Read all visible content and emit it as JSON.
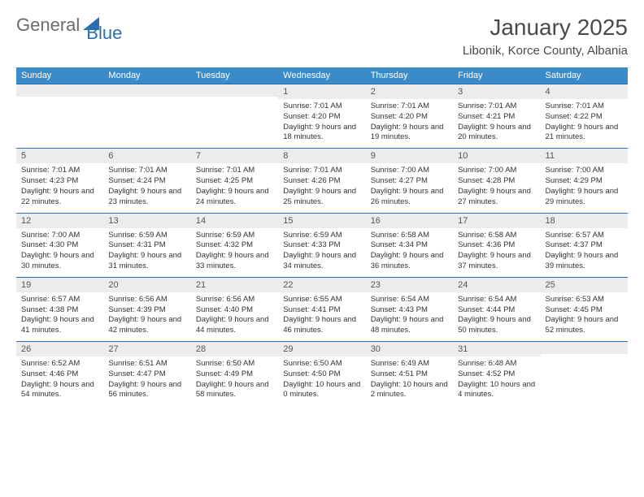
{
  "logo": {
    "general": "General",
    "blue": "Blue"
  },
  "header": {
    "month": "January 2025",
    "location": "Libonik, Korce County, Albania"
  },
  "colors": {
    "headerBg": "#3b8bc9",
    "dayNumBg": "#ececec",
    "border": "#2a6db0",
    "logoBlue": "#2a6db0"
  },
  "weekdays": [
    "Sunday",
    "Monday",
    "Tuesday",
    "Wednesday",
    "Thursday",
    "Friday",
    "Saturday"
  ],
  "weeks": [
    [
      null,
      null,
      null,
      {
        "num": "1",
        "sunrise": "7:01 AM",
        "sunset": "4:20 PM",
        "daylight": "9 hours and 18 minutes."
      },
      {
        "num": "2",
        "sunrise": "7:01 AM",
        "sunset": "4:20 PM",
        "daylight": "9 hours and 19 minutes."
      },
      {
        "num": "3",
        "sunrise": "7:01 AM",
        "sunset": "4:21 PM",
        "daylight": "9 hours and 20 minutes."
      },
      {
        "num": "4",
        "sunrise": "7:01 AM",
        "sunset": "4:22 PM",
        "daylight": "9 hours and 21 minutes."
      }
    ],
    [
      {
        "num": "5",
        "sunrise": "7:01 AM",
        "sunset": "4:23 PM",
        "daylight": "9 hours and 22 minutes."
      },
      {
        "num": "6",
        "sunrise": "7:01 AM",
        "sunset": "4:24 PM",
        "daylight": "9 hours and 23 minutes."
      },
      {
        "num": "7",
        "sunrise": "7:01 AM",
        "sunset": "4:25 PM",
        "daylight": "9 hours and 24 minutes."
      },
      {
        "num": "8",
        "sunrise": "7:01 AM",
        "sunset": "4:26 PM",
        "daylight": "9 hours and 25 minutes."
      },
      {
        "num": "9",
        "sunrise": "7:00 AM",
        "sunset": "4:27 PM",
        "daylight": "9 hours and 26 minutes."
      },
      {
        "num": "10",
        "sunrise": "7:00 AM",
        "sunset": "4:28 PM",
        "daylight": "9 hours and 27 minutes."
      },
      {
        "num": "11",
        "sunrise": "7:00 AM",
        "sunset": "4:29 PM",
        "daylight": "9 hours and 29 minutes."
      }
    ],
    [
      {
        "num": "12",
        "sunrise": "7:00 AM",
        "sunset": "4:30 PM",
        "daylight": "9 hours and 30 minutes."
      },
      {
        "num": "13",
        "sunrise": "6:59 AM",
        "sunset": "4:31 PM",
        "daylight": "9 hours and 31 minutes."
      },
      {
        "num": "14",
        "sunrise": "6:59 AM",
        "sunset": "4:32 PM",
        "daylight": "9 hours and 33 minutes."
      },
      {
        "num": "15",
        "sunrise": "6:59 AM",
        "sunset": "4:33 PM",
        "daylight": "9 hours and 34 minutes."
      },
      {
        "num": "16",
        "sunrise": "6:58 AM",
        "sunset": "4:34 PM",
        "daylight": "9 hours and 36 minutes."
      },
      {
        "num": "17",
        "sunrise": "6:58 AM",
        "sunset": "4:36 PM",
        "daylight": "9 hours and 37 minutes."
      },
      {
        "num": "18",
        "sunrise": "6:57 AM",
        "sunset": "4:37 PM",
        "daylight": "9 hours and 39 minutes."
      }
    ],
    [
      {
        "num": "19",
        "sunrise": "6:57 AM",
        "sunset": "4:38 PM",
        "daylight": "9 hours and 41 minutes."
      },
      {
        "num": "20",
        "sunrise": "6:56 AM",
        "sunset": "4:39 PM",
        "daylight": "9 hours and 42 minutes."
      },
      {
        "num": "21",
        "sunrise": "6:56 AM",
        "sunset": "4:40 PM",
        "daylight": "9 hours and 44 minutes."
      },
      {
        "num": "22",
        "sunrise": "6:55 AM",
        "sunset": "4:41 PM",
        "daylight": "9 hours and 46 minutes."
      },
      {
        "num": "23",
        "sunrise": "6:54 AM",
        "sunset": "4:43 PM",
        "daylight": "9 hours and 48 minutes."
      },
      {
        "num": "24",
        "sunrise": "6:54 AM",
        "sunset": "4:44 PM",
        "daylight": "9 hours and 50 minutes."
      },
      {
        "num": "25",
        "sunrise": "6:53 AM",
        "sunset": "4:45 PM",
        "daylight": "9 hours and 52 minutes."
      }
    ],
    [
      {
        "num": "26",
        "sunrise": "6:52 AM",
        "sunset": "4:46 PM",
        "daylight": "9 hours and 54 minutes."
      },
      {
        "num": "27",
        "sunrise": "6:51 AM",
        "sunset": "4:47 PM",
        "daylight": "9 hours and 56 minutes."
      },
      {
        "num": "28",
        "sunrise": "6:50 AM",
        "sunset": "4:49 PM",
        "daylight": "9 hours and 58 minutes."
      },
      {
        "num": "29",
        "sunrise": "6:50 AM",
        "sunset": "4:50 PM",
        "daylight": "10 hours and 0 minutes."
      },
      {
        "num": "30",
        "sunrise": "6:49 AM",
        "sunset": "4:51 PM",
        "daylight": "10 hours and 2 minutes."
      },
      {
        "num": "31",
        "sunrise": "6:48 AM",
        "sunset": "4:52 PM",
        "daylight": "10 hours and 4 minutes."
      },
      null
    ]
  ],
  "labels": {
    "sunrise": "Sunrise:",
    "sunset": "Sunset:",
    "daylight": "Daylight:"
  }
}
